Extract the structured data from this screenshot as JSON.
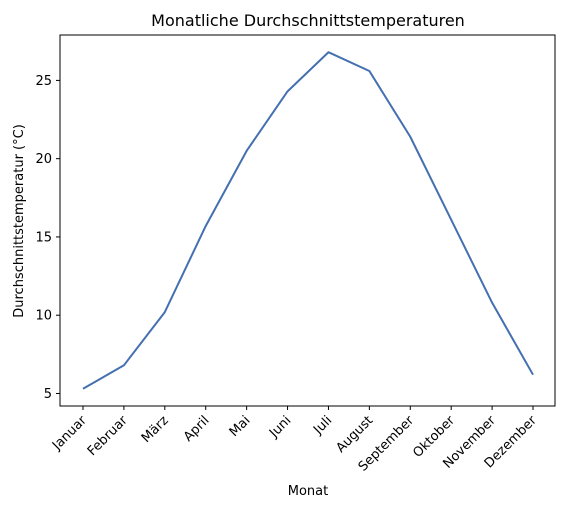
{
  "chart_data": {
    "type": "line",
    "title": "Monatliche Durchschnittstemperaturen",
    "xlabel": "Monat",
    "ylabel": "Durchschnittstemperatur (°C)",
    "categories": [
      "Januar",
      "Februar",
      "März",
      "April",
      "Mai",
      "Juni",
      "Juli",
      "August",
      "September",
      "Oktober",
      "November",
      "Dezember"
    ],
    "series": [
      {
        "values": [
          5.3,
          6.8,
          10.2,
          15.7,
          20.5,
          24.3,
          26.8,
          25.6,
          21.4,
          16.1,
          10.8,
          6.2
        ],
        "color": "#4470b0"
      }
    ],
    "yticks": [
      5,
      10,
      15,
      20,
      25
    ],
    "ylim": [
      4.2,
      27.9
    ],
    "grid": false,
    "legend": "none"
  }
}
